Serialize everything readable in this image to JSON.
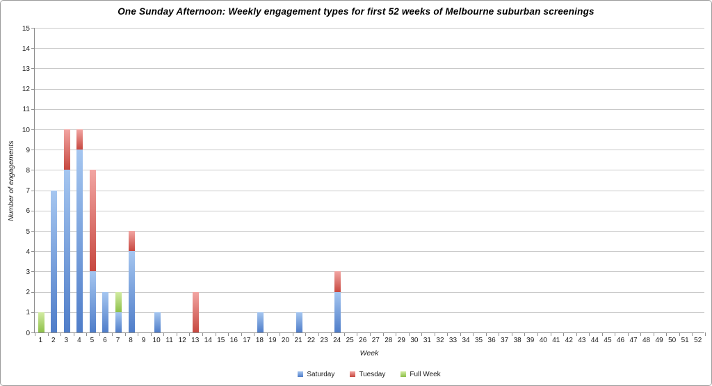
{
  "chart_data": {
    "type": "bar",
    "stacked": true,
    "title": "One Sunday Afternoon: Weekly engagement types for first 52 weeks of Melbourne suburban screenings",
    "xlabel": "Week",
    "ylabel": "Number of engagements",
    "ylim": [
      0,
      15
    ],
    "ytick_step": 1,
    "grid": true,
    "legend_position": "bottom",
    "categories": [
      "1",
      "2",
      "3",
      "4",
      "5",
      "6",
      "7",
      "8",
      "9",
      "10",
      "11",
      "12",
      "13",
      "14",
      "15",
      "16",
      "17",
      "18",
      "19",
      "20",
      "21",
      "22",
      "23",
      "24",
      "25",
      "26",
      "27",
      "28",
      "29",
      "30",
      "31",
      "32",
      "33",
      "34",
      "35",
      "36",
      "37",
      "38",
      "39",
      "40",
      "41",
      "42",
      "43",
      "44",
      "45",
      "46",
      "47",
      "48",
      "49",
      "50",
      "51",
      "52"
    ],
    "series": [
      {
        "name": "Saturday",
        "color_light": "#a5c6f0",
        "color_dark": "#4f7dc9",
        "values": [
          0,
          7,
          8,
          9,
          3,
          2,
          1,
          4,
          0,
          1,
          0,
          0,
          0,
          0,
          0,
          0,
          0,
          1,
          0,
          0,
          1,
          0,
          0,
          2,
          0,
          0,
          0,
          0,
          0,
          0,
          0,
          0,
          0,
          0,
          0,
          0,
          0,
          0,
          0,
          0,
          0,
          0,
          0,
          0,
          0,
          0,
          0,
          0,
          0,
          0,
          0,
          0
        ]
      },
      {
        "name": "Tuesday",
        "color_light": "#f2a5a2",
        "color_dark": "#c74840",
        "values": [
          0,
          0,
          2,
          1,
          5,
          0,
          0,
          1,
          0,
          0,
          0,
          0,
          2,
          0,
          0,
          0,
          0,
          0,
          0,
          0,
          0,
          0,
          0,
          1,
          0,
          0,
          0,
          0,
          0,
          0,
          0,
          0,
          0,
          0,
          0,
          0,
          0,
          0,
          0,
          0,
          0,
          0,
          0,
          0,
          0,
          0,
          0,
          0,
          0,
          0,
          0,
          0
        ]
      },
      {
        "name": "Full Week",
        "color_light": "#d2eba2",
        "color_dark": "#8dc049",
        "values": [
          1,
          0,
          0,
          0,
          0,
          0,
          1,
          0,
          0,
          0,
          0,
          0,
          0,
          0,
          0,
          0,
          0,
          0,
          0,
          0,
          0,
          0,
          0,
          0,
          0,
          0,
          0,
          0,
          0,
          0,
          0,
          0,
          0,
          0,
          0,
          0,
          0,
          0,
          0,
          0,
          0,
          0,
          0,
          0,
          0,
          0,
          0,
          0,
          0,
          0,
          0,
          0
        ]
      }
    ],
    "style": {
      "axis_color": "#8e8e8e",
      "grid_color": "#c9c9c9",
      "background": "#ffffff"
    }
  }
}
